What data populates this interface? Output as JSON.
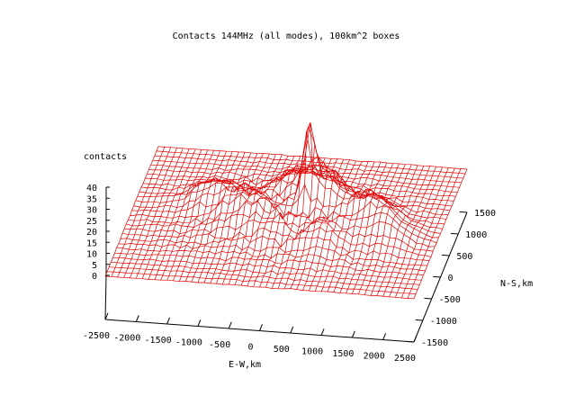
{
  "chart_data": {
    "type": "surface3d",
    "title": "Contacts 144MHz (all modes), 100km^2 boxes",
    "zlabel": "contacts",
    "xlabel": "E-W,km",
    "ylabel": "N-S,km",
    "xlim": [
      -2500,
      2500
    ],
    "ylim": [
      -1500,
      1500
    ],
    "zlim": [
      0,
      40
    ],
    "xticks": [
      "-2500",
      "-2000",
      "-1500",
      "-1000",
      "-500",
      "0",
      "500",
      "1000",
      "1500",
      "2000",
      "2500"
    ],
    "yticks": [
      "-1500",
      "-1000",
      "-500",
      "0",
      "500",
      "1000",
      "1500"
    ],
    "zticks": [
      "0",
      "5",
      "10",
      "15",
      "20",
      "25",
      "30",
      "35",
      "40"
    ],
    "grid_step_km": 100,
    "mesh_color": "#e00000",
    "peaks": [
      {
        "x": 300,
        "y": 200,
        "z": 40
      },
      {
        "x": 500,
        "y": 300,
        "z": 18
      },
      {
        "x": 1300,
        "y": 100,
        "z": 12
      },
      {
        "x": -700,
        "y": 0,
        "z": 10
      },
      {
        "x": 1700,
        "y": -200,
        "z": 8
      },
      {
        "x": -1300,
        "y": 300,
        "z": 8
      },
      {
        "x": 0,
        "y": 600,
        "z": 9
      },
      {
        "x": 700,
        "y": -500,
        "z": 7
      },
      {
        "x": -200,
        "y": -300,
        "z": 7
      }
    ]
  }
}
